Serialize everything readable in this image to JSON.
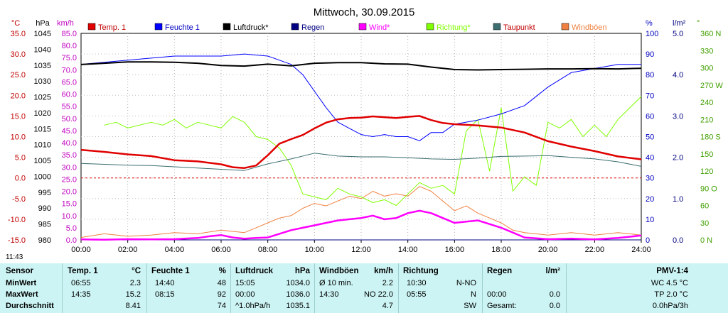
{
  "colors": {
    "temp": "#e00000",
    "feuchte": "#0000ff",
    "luftdruck": "#000000",
    "regen": "#000080",
    "wind": "#ff00ff",
    "richtung": "#80ff00",
    "taupunkt": "#3c6e70",
    "windboeen": "#f08040",
    "table_bg": "#cdf4f4"
  },
  "chart_data": {
    "type": "line",
    "title": "Mittwoch, 30.09.2015",
    "x_ticks": [
      "00:00",
      "02:00",
      "04:00",
      "06:00",
      "08:00",
      "10:00",
      "12:00",
      "14:00",
      "16:00",
      "18:00",
      "20:00",
      "22:00",
      "24:00"
    ],
    "x_range": [
      0,
      24
    ],
    "axes": {
      "temp": {
        "unit": "°C",
        "range": [
          -15,
          35
        ],
        "ticks": [
          "35.0",
          "30.0",
          "25.0",
          "20.0",
          "15.0",
          "10.0",
          "5.0",
          "0.0",
          "-5.0",
          "-10.0",
          "-15.0"
        ]
      },
      "hpa": {
        "unit": "hPa",
        "range": [
          980,
          1045
        ],
        "ticks": [
          "1045",
          "1040",
          "1035",
          "1030",
          "1025",
          "1020",
          "1015",
          "1010",
          "1005",
          "1000",
          "995",
          "990",
          "985",
          "980"
        ]
      },
      "kmh": {
        "unit": "km/h",
        "range": [
          0,
          85
        ],
        "ticks": [
          "85.0",
          "80.0",
          "75.0",
          "70.0",
          "65.0",
          "60.0",
          "55.0",
          "50.0",
          "45.0",
          "40.0",
          "35.0",
          "30.0",
          "25.0",
          "20.0",
          "15.0",
          "10.0",
          "5.0",
          "0.0"
        ]
      },
      "pct": {
        "unit": "%",
        "range": [
          0,
          100
        ],
        "ticks": [
          "100",
          "90",
          "80",
          "70",
          "60",
          "50",
          "40",
          "30",
          "20",
          "10",
          "0"
        ]
      },
      "rain": {
        "unit": "l/m²",
        "range": [
          0,
          5
        ],
        "ticks": [
          "5.0",
          "4.0",
          "3.0",
          "2.0",
          "1.0",
          "0.0"
        ]
      },
      "dir": {
        "unit": "°",
        "range": [
          0,
          360
        ],
        "ticks": [
          "360 N",
          "330",
          "300",
          "270 W",
          "240",
          "210",
          "180 S",
          "150",
          "120",
          "90 O",
          "60",
          "30",
          "0 N"
        ]
      }
    },
    "legend": [
      "Temp. 1",
      "Feuchte 1",
      "Luftdruck*",
      "Regen",
      "Wind*",
      "Richtung*",
      "Taupunkt",
      "Windböen"
    ],
    "series": [
      {
        "name": "Temp. 1",
        "axis": "temp",
        "x": [
          0,
          1,
          2,
          3,
          4,
          5,
          6,
          6.5,
          7,
          7.5,
          8,
          8.5,
          9,
          9.5,
          10,
          10.5,
          11,
          11.5,
          12,
          12.5,
          13,
          13.5,
          14,
          14.5,
          15,
          15.5,
          16,
          17,
          18,
          19,
          20,
          21,
          22,
          23,
          24
        ],
        "y": [
          6.8,
          6.3,
          5.7,
          5.3,
          4.3,
          4.0,
          3.3,
          2.6,
          2.4,
          3.0,
          5.5,
          8.3,
          9.4,
          10.4,
          12.0,
          13.4,
          14.2,
          14.5,
          14.6,
          14.9,
          14.7,
          14.5,
          14.8,
          15.0,
          14.0,
          13.3,
          13.0,
          12.7,
          12.2,
          11.0,
          8.9,
          7.6,
          6.5,
          5.2,
          4.5
        ]
      },
      {
        "name": "Feuchte 1",
        "axis": "pct",
        "x": [
          0,
          1,
          2,
          3,
          4,
          5,
          6,
          7,
          8,
          8.5,
          9,
          9.5,
          10,
          10.5,
          11,
          11.5,
          12,
          12.5,
          13,
          13.5,
          14,
          14.5,
          15,
          15.5,
          16,
          17,
          18,
          19,
          20,
          21,
          22,
          23,
          24
        ],
        "y": [
          85,
          86,
          87,
          88,
          89,
          89,
          89,
          90,
          89,
          87,
          85,
          80,
          72,
          64,
          57,
          54,
          51,
          50,
          51,
          50,
          50,
          48,
          52,
          52,
          56,
          58,
          61,
          65,
          74,
          81,
          83,
          85,
          85
        ]
      },
      {
        "name": "Luftdruck*",
        "axis": "hpa",
        "x": [
          0,
          1,
          2,
          3,
          4,
          5,
          6,
          7,
          8,
          9,
          10,
          11,
          12,
          13,
          14,
          15,
          16,
          17,
          18,
          19,
          20,
          21,
          22,
          23,
          24
        ],
        "y": [
          1035.2,
          1035.6,
          1036.0,
          1036.0,
          1035.9,
          1035.6,
          1034.9,
          1034.7,
          1035.3,
          1034.8,
          1035.6,
          1035.8,
          1035.8,
          1035.4,
          1035.3,
          1034.4,
          1033.6,
          1033.5,
          1033.6,
          1033.7,
          1033.8,
          1033.8,
          1033.9,
          1033.8,
          1034.0
        ]
      },
      {
        "name": "Regen",
        "axis": "rain",
        "x": [
          0,
          24
        ],
        "y": [
          0,
          0
        ]
      },
      {
        "name": "Wind*",
        "axis": "kmh",
        "x": [
          0,
          1,
          2,
          3,
          4,
          5,
          5.5,
          6,
          6.5,
          7,
          7.5,
          8,
          8.5,
          9,
          9.5,
          10,
          10.5,
          11,
          11.5,
          12,
          12.5,
          13,
          13.5,
          14,
          14.5,
          15,
          15.5,
          16,
          16.5,
          17,
          17.5,
          18,
          18.5,
          19,
          20,
          21,
          22,
          23,
          24
        ],
        "y": [
          0.2,
          0.1,
          0.3,
          0.2,
          0.3,
          0.8,
          1.5,
          2.0,
          1.0,
          0.5,
          0.8,
          1.0,
          2.5,
          4.0,
          5.0,
          6.0,
          7.0,
          8.0,
          8.5,
          9.0,
          10.0,
          8.5,
          9.0,
          11.0,
          12.0,
          11.0,
          9.0,
          7.0,
          7.5,
          8.0,
          6.5,
          5.0,
          3.0,
          1.0,
          0.3,
          0.5,
          0.2,
          0.8,
          1.8
        ]
      },
      {
        "name": "Richtung*",
        "axis": "dir",
        "x": [
          1,
          1.5,
          2,
          3,
          3.5,
          4,
          4.5,
          5,
          5.5,
          6,
          6.5,
          7,
          7.5,
          8,
          8.5,
          9,
          9.5,
          10,
          10.5,
          11,
          11.5,
          12,
          12.5,
          13,
          13.5,
          14,
          14.5,
          15,
          15.5,
          16,
          16.5,
          17,
          17.5,
          18,
          18.5,
          19,
          19.5,
          20,
          20.5,
          21,
          21.5,
          22,
          22.5,
          23,
          23.5,
          24
        ],
        "y": [
          200,
          205,
          195,
          205,
          200,
          210,
          195,
          205,
          200,
          195,
          215,
          205,
          180,
          175,
          160,
          130,
          80,
          75,
          70,
          90,
          80,
          75,
          65,
          70,
          60,
          80,
          100,
          90,
          95,
          80,
          190,
          210,
          120,
          230,
          85,
          110,
          95,
          205,
          195,
          210,
          180,
          200,
          180,
          210,
          230,
          250
        ]
      },
      {
        "name": "Taupunkt",
        "axis": "temp",
        "x": [
          0,
          1,
          2,
          3,
          4,
          5,
          6,
          7,
          8,
          9,
          10,
          11,
          12,
          13,
          14,
          15,
          16,
          17,
          18,
          19,
          20,
          21,
          22,
          23,
          24
        ],
        "y": [
          3.5,
          3.3,
          3.1,
          3.0,
          2.7,
          2.4,
          2.1,
          1.8,
          3.4,
          4.6,
          6.0,
          5.3,
          5.1,
          5.1,
          4.9,
          4.6,
          4.5,
          4.8,
          5.2,
          5.3,
          5.4,
          5.0,
          4.6,
          3.9,
          2.8
        ]
      },
      {
        "name": "Windböen",
        "axis": "kmh",
        "x": [
          0,
          1,
          2,
          3,
          4,
          5,
          6,
          7,
          7.5,
          8,
          8.5,
          9,
          9.5,
          10,
          10.5,
          11,
          11.5,
          12,
          12.5,
          13,
          13.5,
          14,
          14.5,
          15,
          15.5,
          16,
          16.5,
          17,
          17.5,
          18,
          18.5,
          19,
          20,
          21,
          22,
          23,
          24
        ],
        "y": [
          1.0,
          2.5,
          1.5,
          2.0,
          3.0,
          2.5,
          4.0,
          3.0,
          5.0,
          7.0,
          9.0,
          10.0,
          13.0,
          15.0,
          14.0,
          16.0,
          18.0,
          17.0,
          20.0,
          18.0,
          19.0,
          18.0,
          22.0,
          20.0,
          16.0,
          12.0,
          14.0,
          11.0,
          9.0,
          7.0,
          4.0,
          3.0,
          2.0,
          3.0,
          2.0,
          3.0,
          2.0
        ]
      }
    ]
  },
  "footer": {
    "time": "11:43"
  },
  "table": {
    "headers": {
      "sensor": "Sensor",
      "temp": "Temp. 1",
      "temp_unit": "°C",
      "feuchte": "Feuchte 1",
      "feuchte_unit": "%",
      "luftdruck": "Luftdruck",
      "luftdruck_unit": "hPa",
      "windboeen": "Windböen",
      "windboeen_unit": "km/h",
      "richtung": "Richtung",
      "regen": "Regen",
      "regen_unit": "l/m²",
      "pmv": "PMV-1:4"
    },
    "rows": [
      {
        "label": "MinWert",
        "temp_time": "06:55",
        "temp_val": "2.3",
        "feu_time": "14:40",
        "feu_val": "48",
        "lp_time": "15:05",
        "lp_val": "1034.0",
        "wb_time": "Ø 10 min.",
        "wb_val": "2.2",
        "ri_time": "10:30",
        "ri_val": "N-NO",
        "re_time": "",
        "re_val": "",
        "pmv": "WC 4.5 °C"
      },
      {
        "label": "MaxWert",
        "temp_time": "14:35",
        "temp_val": "15.2",
        "feu_time": "08:15",
        "feu_val": "92",
        "lp_time": "00:00",
        "lp_val": "1036.0",
        "wb_time": "14:30",
        "wb_val": "NO 22.0",
        "ri_time": "05:55",
        "ri_val": "N",
        "re_time": "00:00",
        "re_val": "0.0",
        "pmv": "TP 2.0 °C"
      },
      {
        "label": "Durchschnitt",
        "temp_time": "",
        "temp_val": "8.41",
        "feu_time": "",
        "feu_val": "74",
        "lp_time": "^1.0hPa/h",
        "lp_val": "1035.1",
        "wb_time": "",
        "wb_val": "4.7",
        "ri_time": "",
        "ri_val": "SW",
        "re_time": "Gesamt:",
        "re_val": "0.0",
        "pmv": "0.0hPa/3h"
      }
    ]
  }
}
